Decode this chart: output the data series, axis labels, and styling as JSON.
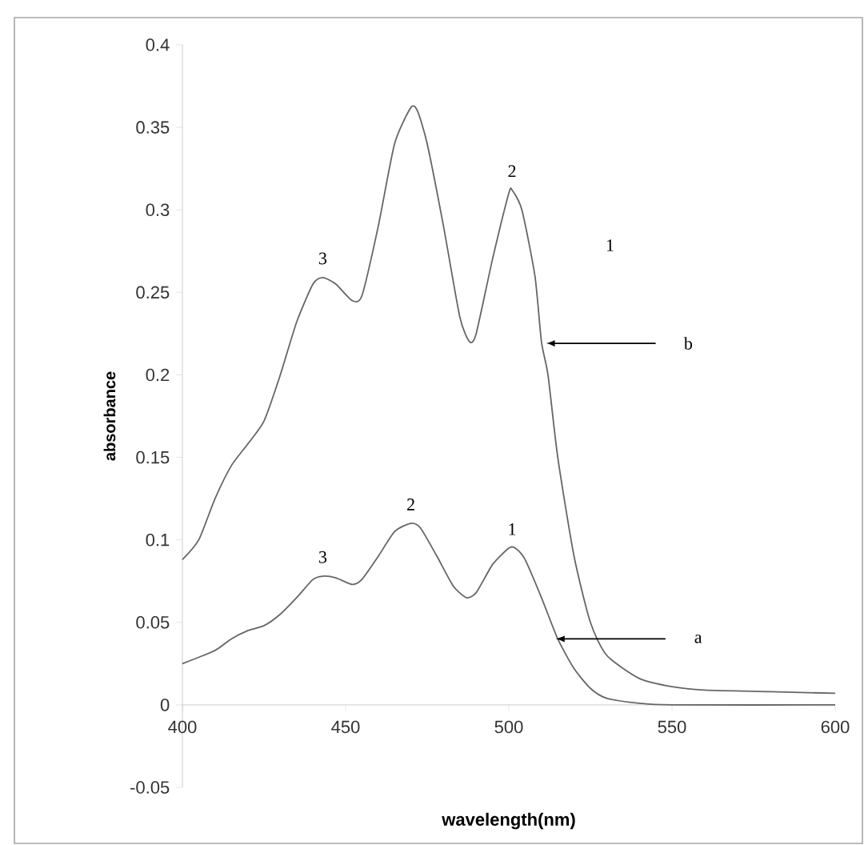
{
  "chart_data": {
    "type": "line",
    "xlabel": "wavelength(nm)",
    "ylabel": "absorbance",
    "xlim": [
      400,
      600
    ],
    "ylim": [
      -0.05,
      0.4
    ],
    "xticks": [
      400,
      450,
      500,
      550,
      600
    ],
    "yticks": [
      -0.05,
      0,
      0.05,
      0.1,
      0.15,
      0.2,
      0.25,
      0.3,
      0.35,
      0.4
    ],
    "marker": "none",
    "line_style": "solid",
    "series": [
      {
        "color": "#666666",
        "x": [
          400,
          405,
          410,
          415,
          420,
          425,
          430,
          435,
          440,
          443,
          447,
          452,
          455,
          460,
          465,
          470,
          472,
          475,
          480,
          485,
          488,
          490,
          495,
          500,
          501,
          504,
          508,
          510,
          512,
          515,
          520,
          525,
          530,
          540,
          550,
          560,
          580,
          600
        ],
        "values": [
          0.088,
          0.1,
          0.125,
          0.145,
          0.158,
          0.172,
          0.2,
          0.232,
          0.255,
          0.259,
          0.255,
          0.245,
          0.248,
          0.29,
          0.34,
          0.362,
          0.36,
          0.34,
          0.29,
          0.235,
          0.22,
          0.225,
          0.27,
          0.31,
          0.312,
          0.3,
          0.26,
          0.22,
          0.2,
          0.15,
          0.09,
          0.05,
          0.03,
          0.016,
          0.011,
          0.009,
          0.008,
          0.007
        ]
      },
      {
        "color": "#666666",
        "x": [
          400,
          410,
          415,
          420,
          425,
          430,
          435,
          440,
          443,
          447,
          452,
          455,
          460,
          465,
          470,
          473,
          478,
          483,
          487,
          490,
          495,
          500,
          502,
          505,
          510,
          515,
          520,
          525,
          530,
          540,
          550,
          600
        ],
        "values": [
          0.025,
          0.033,
          0.04,
          0.045,
          0.048,
          0.055,
          0.065,
          0.076,
          0.078,
          0.077,
          0.073,
          0.076,
          0.09,
          0.105,
          0.11,
          0.107,
          0.09,
          0.072,
          0.065,
          0.068,
          0.085,
          0.095,
          0.095,
          0.088,
          0.065,
          0.04,
          0.022,
          0.01,
          0.004,
          0.001,
          0,
          0
        ]
      }
    ],
    "annotations": [
      {
        "text": "3",
        "x": 443,
        "y": 0.259
      },
      {
        "text": "2",
        "x": 501,
        "y": 0.312
      },
      "1",
      {
        "text": "3",
        "x": 443,
        "y": 0.078
      },
      {
        "text": "2",
        "x": 470,
        "y": 0.11
      },
      {
        "text": "1",
        "x": 501,
        "y": 0.095
      },
      "b",
      "a"
    ]
  }
}
